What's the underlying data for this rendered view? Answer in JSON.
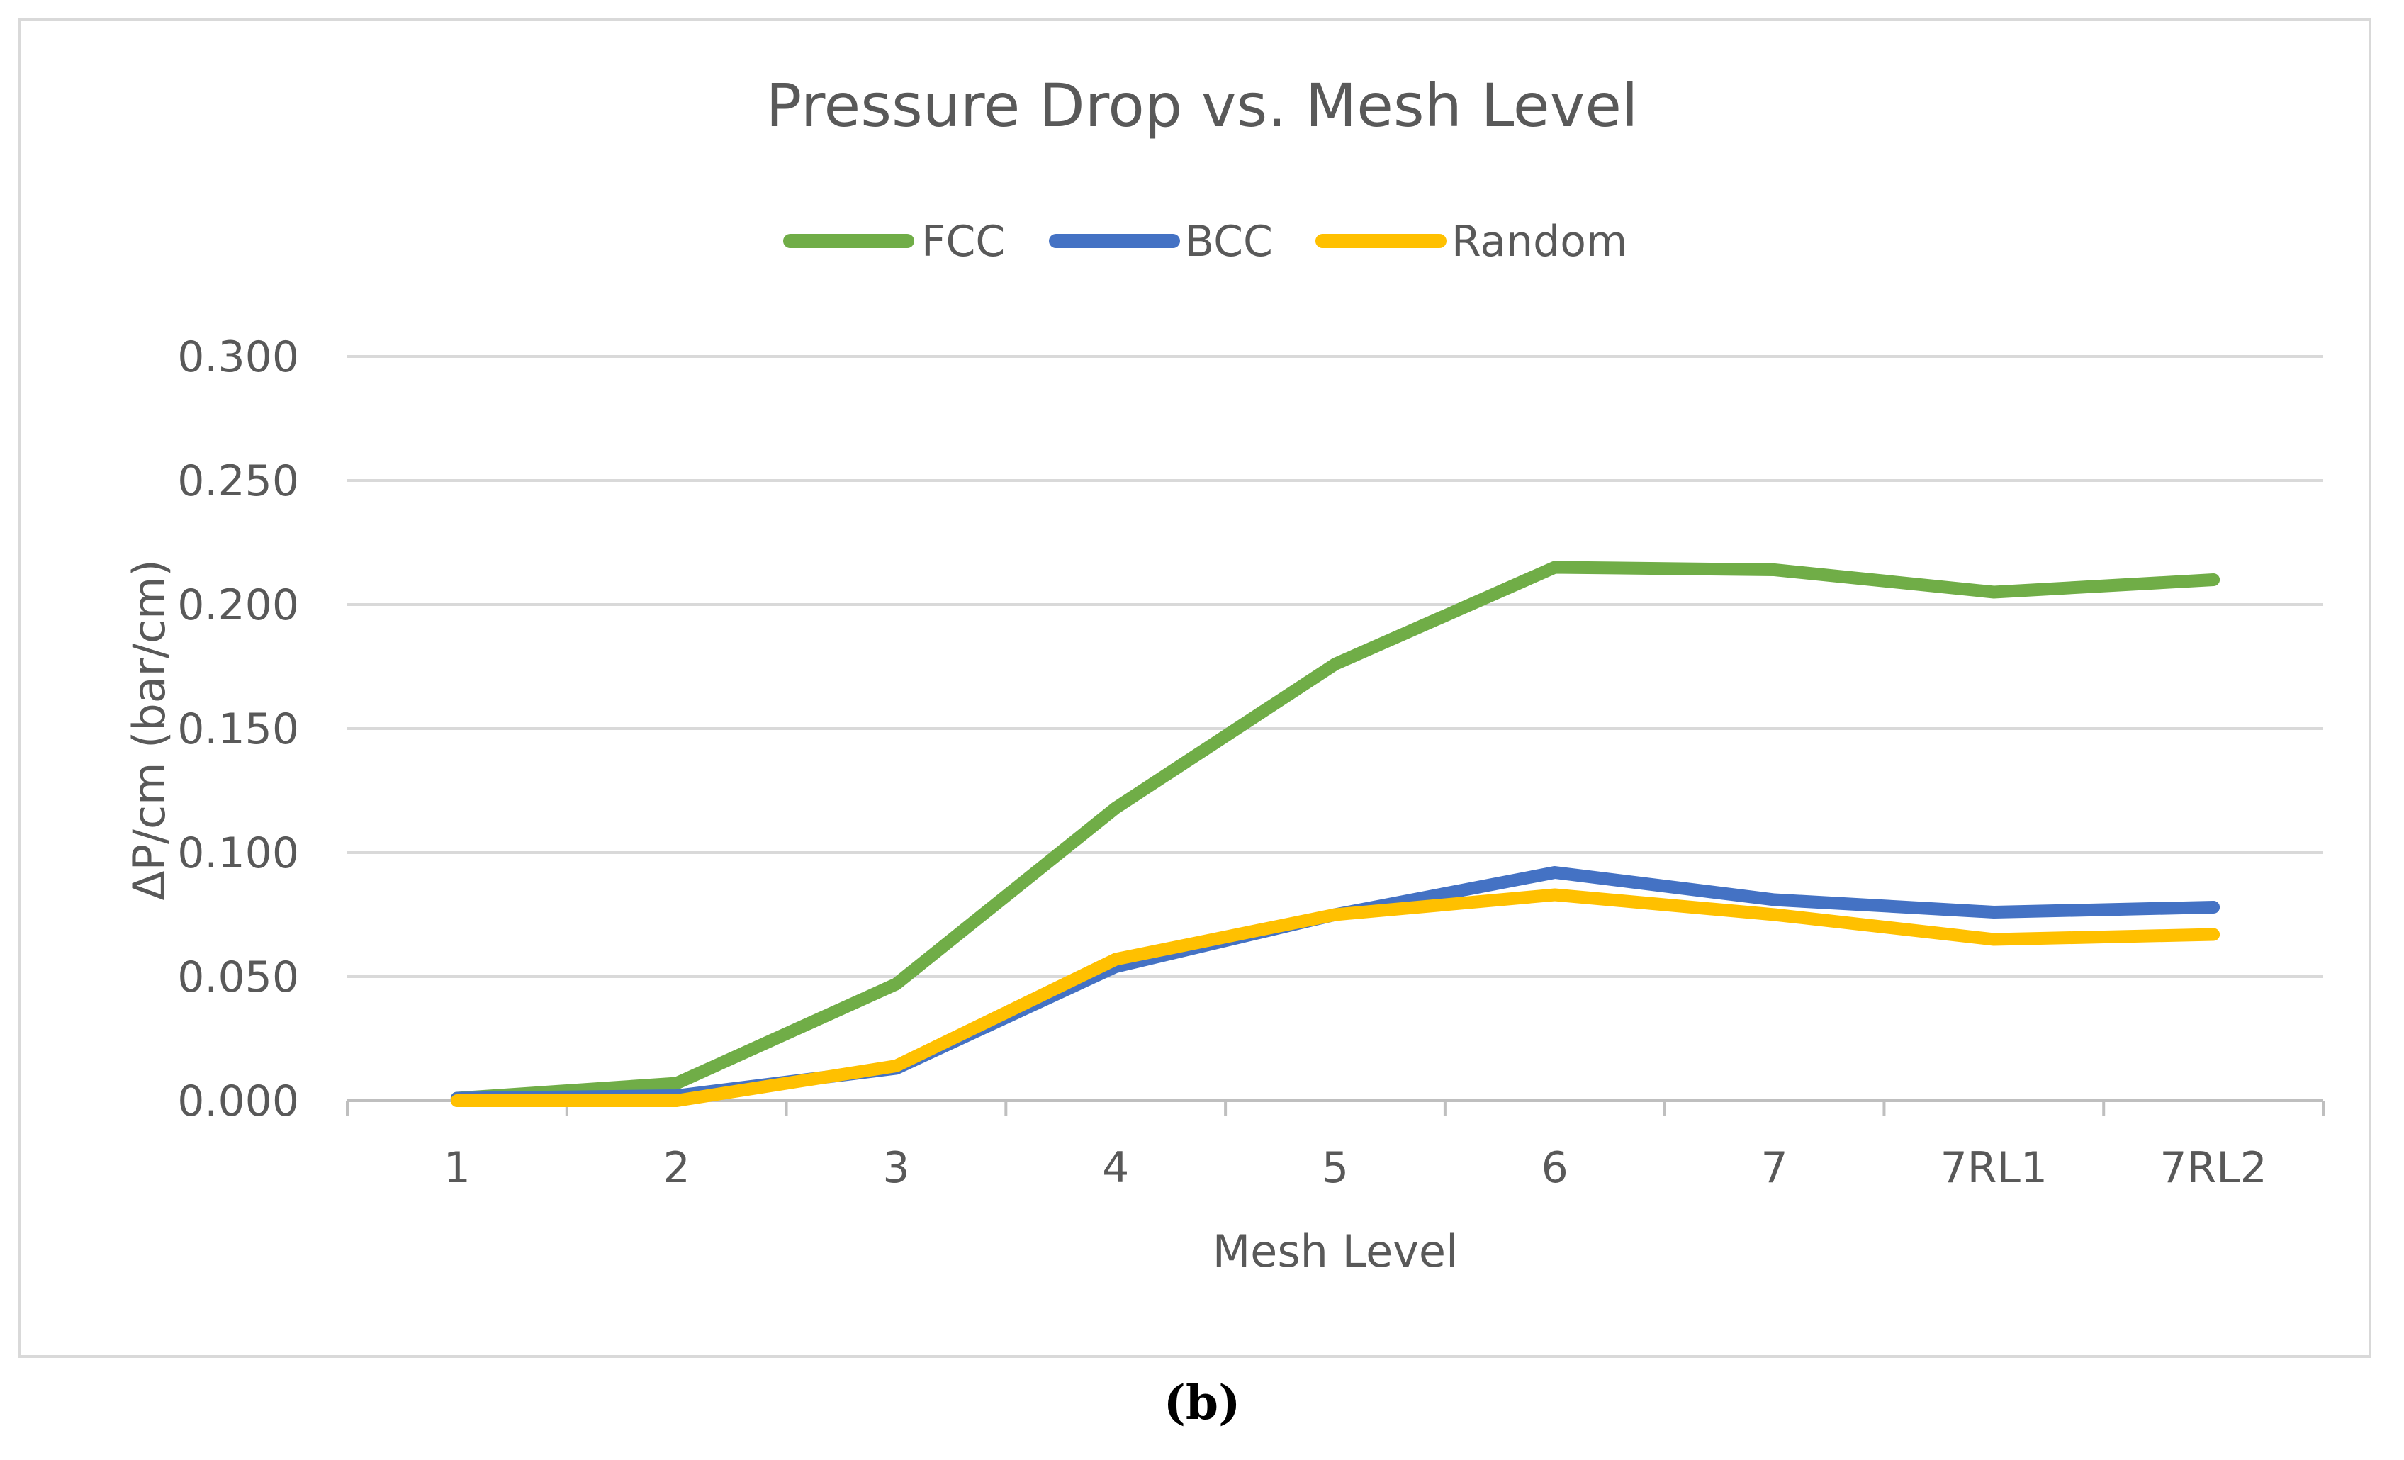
{
  "chart_data": {
    "type": "line",
    "title": "Pressure Drop vs. Mesh Level",
    "xlabel": "Mesh Level",
    "ylabel": "ΔP/cm  (bar/cm)",
    "categories": [
      "1",
      "2",
      "3",
      "4",
      "5",
      "6",
      "7",
      "7RL1",
      "7RL2"
    ],
    "ylim": [
      0,
      0.3
    ],
    "yticks": [
      0,
      0.05,
      0.1,
      0.15,
      0.2,
      0.25,
      0.3
    ],
    "ytick_labels": [
      "0.000",
      "0.050",
      "0.100",
      "0.150",
      "0.200",
      "0.250",
      "0.300"
    ],
    "grid": true,
    "legend_position": "top",
    "series": [
      {
        "name": "FCC",
        "color": "#70ad47",
        "values": [
          0.001,
          0.007,
          0.047,
          0.118,
          0.176,
          0.215,
          0.214,
          0.205,
          0.21
        ]
      },
      {
        "name": "BCC",
        "color": "#4472c4",
        "values": [
          0.001,
          0.002,
          0.013,
          0.054,
          0.075,
          0.092,
          0.081,
          0.076,
          0.078
        ]
      },
      {
        "name": "Random",
        "color": "#ffc000",
        "values": [
          0.0,
          0.0,
          0.014,
          0.057,
          0.075,
          0.083,
          0.075,
          0.065,
          0.067
        ]
      }
    ]
  },
  "caption": {
    "label": "(b)"
  }
}
